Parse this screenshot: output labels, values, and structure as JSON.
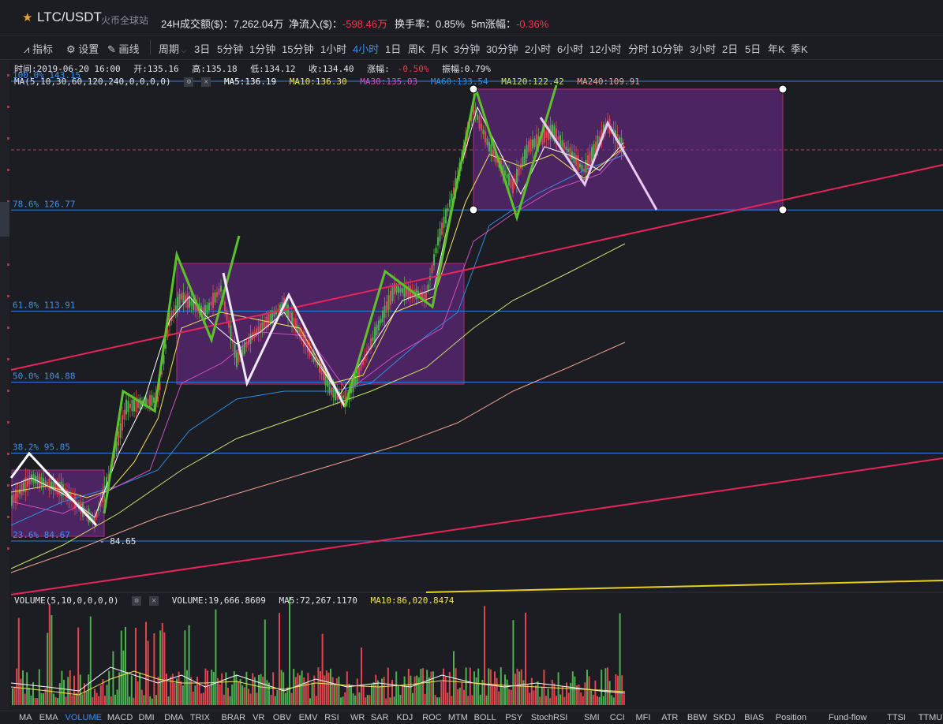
{
  "header": {
    "pair": "LTC/USDT",
    "exchange": "火币全球站",
    "volume_label": "24H成交额($)：",
    "volume_value": "7,262.04万",
    "netflow_label": "净流入($)：",
    "netflow_value": "-598.46万",
    "turnover_label": "换手率：",
    "turnover_value": "0.85%",
    "change5m_label": "5m涨幅：",
    "change5m_value": "-0.36%"
  },
  "toolbar": {
    "indicator": "指标",
    "settings": "设置",
    "draw": "画线",
    "period": "周期",
    "periods": [
      "3日",
      "5分钟",
      "1分钟",
      "15分钟",
      "1小时",
      "4小时",
      "1日",
      "周K",
      "月K",
      "3分钟",
      "30分钟",
      "2小时",
      "6小时",
      "12小时",
      "分时",
      "10分钟",
      "3小时",
      "2日",
      "5日",
      "年K",
      "季K"
    ],
    "active_period": "4小时"
  },
  "ohlc": {
    "time": "时间:2019-06-20 16:00",
    "open": "开:135.16",
    "high": "高:135.18",
    "low": "低:134.12",
    "close": "收:134.40",
    "change": "涨幅:",
    "change_value": "-0.50%",
    "amplitude": "振幅:0.79%"
  },
  "ma": {
    "params": "MA(5,10,30,60,120,240,0,0,0,0)",
    "ma5": "MA5:136.19",
    "ma10": "MA10:136.30",
    "ma30": "MA30:135.03",
    "ma60": "MA60:133.54",
    "ma120": "MA120:122.42",
    "ma240": "MA240:109.91"
  },
  "fib": [
    {
      "label": "100.0% 143.15",
      "price": 143.15
    },
    {
      "label": "78.6% 126.77",
      "price": 126.77
    },
    {
      "label": "61.8% 113.91",
      "price": 113.91
    },
    {
      "label": "50.0% 104.88",
      "price": 104.88
    },
    {
      "label": "38.2% 95.85",
      "price": 95.85
    },
    {
      "label": "23.6% 84.67",
      "price": 84.67
    }
  ],
  "low_marker": "84.65",
  "volume": {
    "params": "VOLUME(5,10,0,0,0,0)",
    "value": "VOLUME:19,666.8609",
    "ma5": "MA5:72,267.1170",
    "ma10": "MA10:86,020.8474"
  },
  "indicators": [
    "MA",
    "EMA",
    "VOLUME",
    "MACD",
    "DMI",
    "DMA",
    "TRIX",
    "BRAR",
    "VR",
    "OBV",
    "EMV",
    "RSI",
    "WR",
    "SAR",
    "KDJ",
    "ROC",
    "MTM",
    "BOLL",
    "PSY",
    "StochRSI",
    "SMI",
    "CCI",
    "MFI",
    "ATR",
    "BBW",
    "SKDJ",
    "BIAS",
    "Position",
    "Fund-flow",
    "TTSI",
    "TTMU"
  ],
  "active_indicator": "VOLUME",
  "colors": {
    "up": "#4caf50",
    "down": "#e0444e",
    "fib_line": "#2f7fd8",
    "box": "#7a2a9a",
    "trend": "#e8245a",
    "ma5": "#ffffff",
    "ma10": "#f3e35a",
    "ma30": "#d14fc0",
    "ma60": "#2f8be0",
    "ma120": "#c8e06a",
    "ma240": "#f0a090"
  }
}
